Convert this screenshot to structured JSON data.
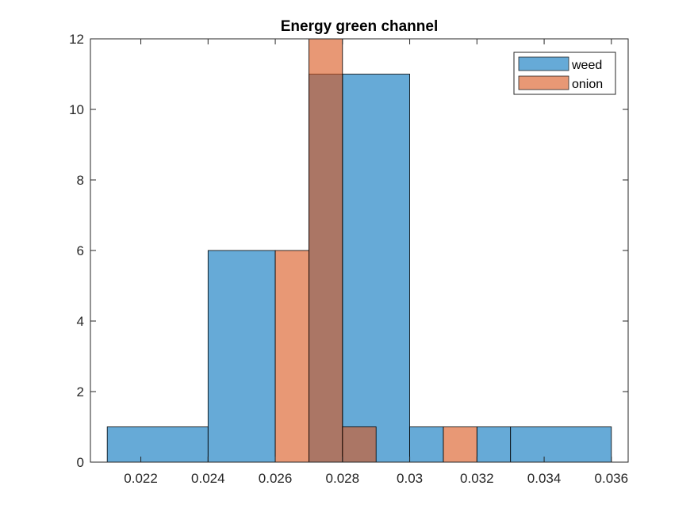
{
  "chart_data": {
    "type": "bar",
    "subtype": "overlapping-histogram",
    "title": "Energy green channel",
    "xlabel": "",
    "ylabel": "",
    "xlim": [
      0.0205,
      0.0365
    ],
    "ylim": [
      0,
      12
    ],
    "x_ticks": [
      0.022,
      0.024,
      0.026,
      0.028,
      0.03,
      0.032,
      0.034,
      0.036
    ],
    "x_tick_labels": [
      "0.022",
      "0.024",
      "0.026",
      "0.028",
      "0.03",
      "0.032",
      "0.034",
      "0.036"
    ],
    "y_ticks": [
      0,
      2,
      4,
      6,
      8,
      10,
      12
    ],
    "y_tick_labels": [
      "0",
      "2",
      "4",
      "6",
      "8",
      "10",
      "12"
    ],
    "grid": false,
    "legend_position": "top-right",
    "series": [
      {
        "name": "weed",
        "color": "#0072BD",
        "opacity": 0.6,
        "bins": [
          {
            "x0": 0.021,
            "x1": 0.024,
            "count": 1
          },
          {
            "x0": 0.024,
            "x1": 0.026,
            "count": 6
          },
          {
            "x0": 0.026,
            "x1": 0.027,
            "count": 0
          },
          {
            "x0": 0.027,
            "x1": 0.028,
            "count": 11
          },
          {
            "x0": 0.028,
            "x1": 0.03,
            "count": 11
          },
          {
            "x0": 0.03,
            "x1": 0.031,
            "count": 1
          },
          {
            "x0": 0.031,
            "x1": 0.032,
            "count": 0
          },
          {
            "x0": 0.032,
            "x1": 0.033,
            "count": 1
          },
          {
            "x0": 0.033,
            "x1": 0.036,
            "count": 1
          }
        ]
      },
      {
        "name": "onion",
        "color": "#D95319",
        "opacity": 0.6,
        "bins": [
          {
            "x0": 0.026,
            "x1": 0.027,
            "count": 6
          },
          {
            "x0": 0.027,
            "x1": 0.028,
            "count": 12
          },
          {
            "x0": 0.028,
            "x1": 0.029,
            "count": 1
          },
          {
            "x0": 0.029,
            "x1": 0.031,
            "count": 0
          },
          {
            "x0": 0.031,
            "x1": 0.032,
            "count": 1
          }
        ]
      }
    ]
  }
}
